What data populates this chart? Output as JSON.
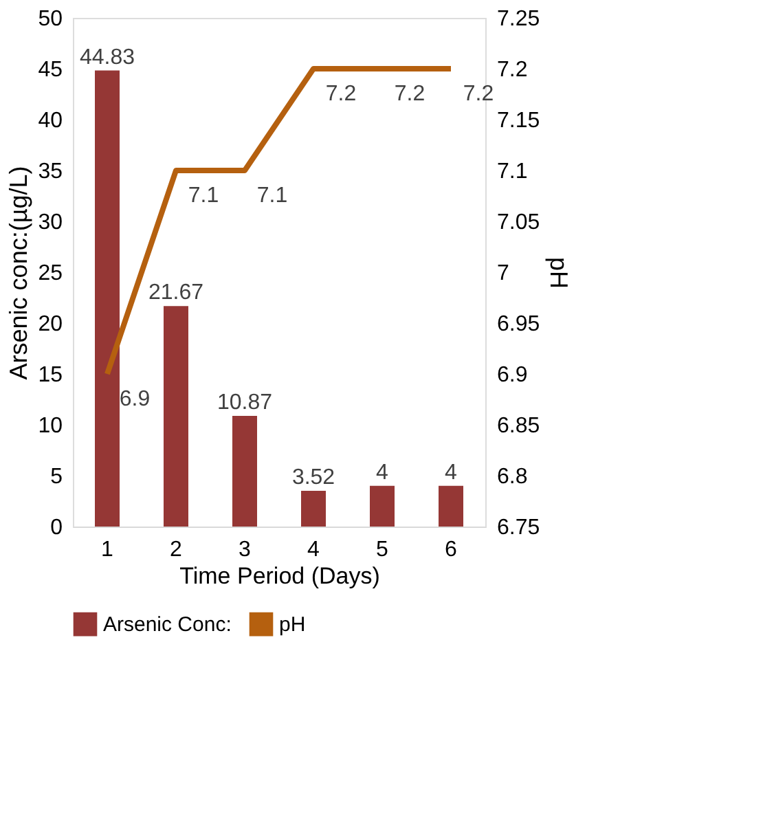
{
  "chart_data": {
    "type": "bar",
    "categories": [
      "1",
      "2",
      "3",
      "4",
      "5",
      "6"
    ],
    "xlabel": "Time Period (Days)",
    "ylabel": "Arsenic conc:(µg/L)",
    "y2label": "pH",
    "series": [
      {
        "name": "Arsenic Conc:",
        "color": "#953735",
        "values": [
          44.83,
          21.67,
          10.87,
          3.52,
          4,
          4
        ]
      },
      {
        "name": "pH",
        "type": "line",
        "axis": "y2",
        "color": "#b5600f",
        "values": [
          6.9,
          7.1,
          7.1,
          7.2,
          7.2,
          7.2
        ]
      }
    ],
    "ylim": [
      0,
      50
    ],
    "yticks": [
      0,
      5,
      10,
      15,
      20,
      25,
      30,
      35,
      40,
      45,
      50
    ],
    "y2lim": [
      6.75,
      7.25
    ],
    "y2ticks": [
      6.75,
      6.8,
      6.85,
      6.9,
      6.95,
      7,
      7.05,
      7.1,
      7.15,
      7.2,
      7.25
    ],
    "data_labels": true,
    "grid": false,
    "legend": "bottom"
  }
}
